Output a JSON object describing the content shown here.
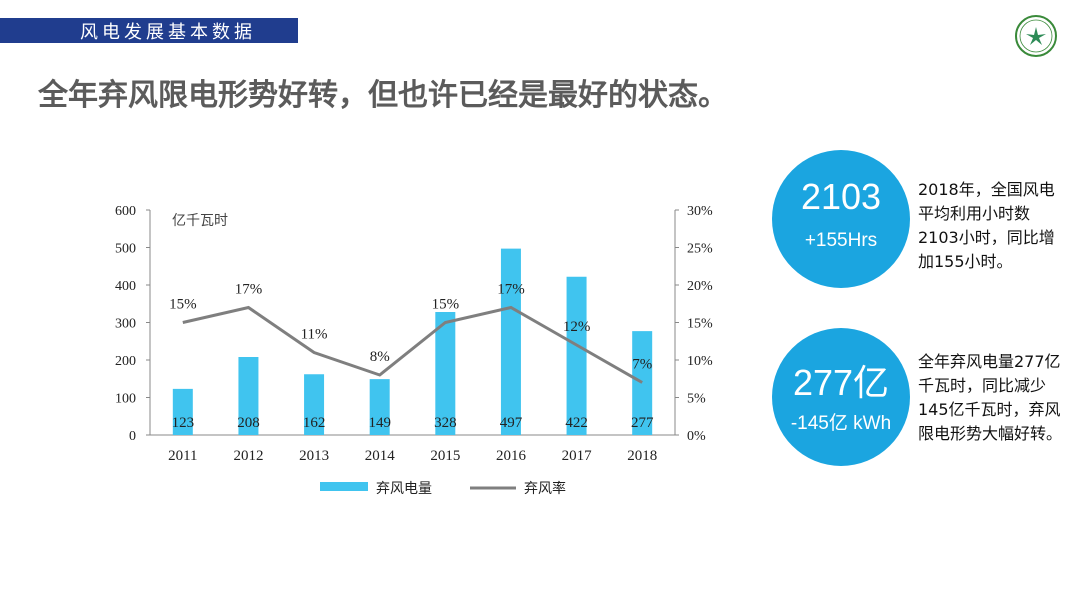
{
  "header": {
    "section_label": "风电发展基本数据"
  },
  "title": "全年弃风限电形势好转，但也许已经是最好的状态。",
  "chart_data": {
    "type": "bar",
    "categories": [
      "2011",
      "2012",
      "2013",
      "2014",
      "2015",
      "2016",
      "2017",
      "2018"
    ],
    "series": [
      {
        "name": "弃风电量",
        "type": "bar",
        "axis": "left",
        "values": [
          123,
          208,
          162,
          149,
          328,
          497,
          422,
          277
        ],
        "color": "#40c4ef"
      },
      {
        "name": "弃风率",
        "type": "line",
        "axis": "right",
        "values": [
          15,
          17,
          11,
          8,
          15,
          17,
          12,
          7
        ],
        "color": "#7f7f7f"
      }
    ],
    "ylabel": "亿千瓦时",
    "ylim": [
      0,
      600
    ],
    "yticks": [
      "0",
      "100",
      "200",
      "300",
      "400",
      "500",
      "600"
    ],
    "y2lim": [
      0,
      30
    ],
    "y2ticks": [
      "0%",
      "5%",
      "10%",
      "15%",
      "20%",
      "25%",
      "30%"
    ],
    "bar_labels": [
      "123",
      "208",
      "162",
      "149",
      "328",
      "497",
      "422",
      "277"
    ],
    "line_labels": [
      "15%",
      "17%",
      "11%",
      "8%",
      "15%",
      "17%",
      "12%",
      "7%"
    ],
    "legend": [
      "弃风电量",
      "弃风率"
    ],
    "legend_position": "bottom"
  },
  "stats": [
    {
      "main": "2103",
      "sub": "+155Hrs",
      "text": "2018年，全国风电平均利用小时数2103小时，同比增加155小时。"
    },
    {
      "main": "277亿",
      "sub": "-145亿 kWh",
      "text": "全年弃风电量277亿千瓦时，同比减少145亿千瓦时，弃风限电形势大幅好转。"
    }
  ]
}
